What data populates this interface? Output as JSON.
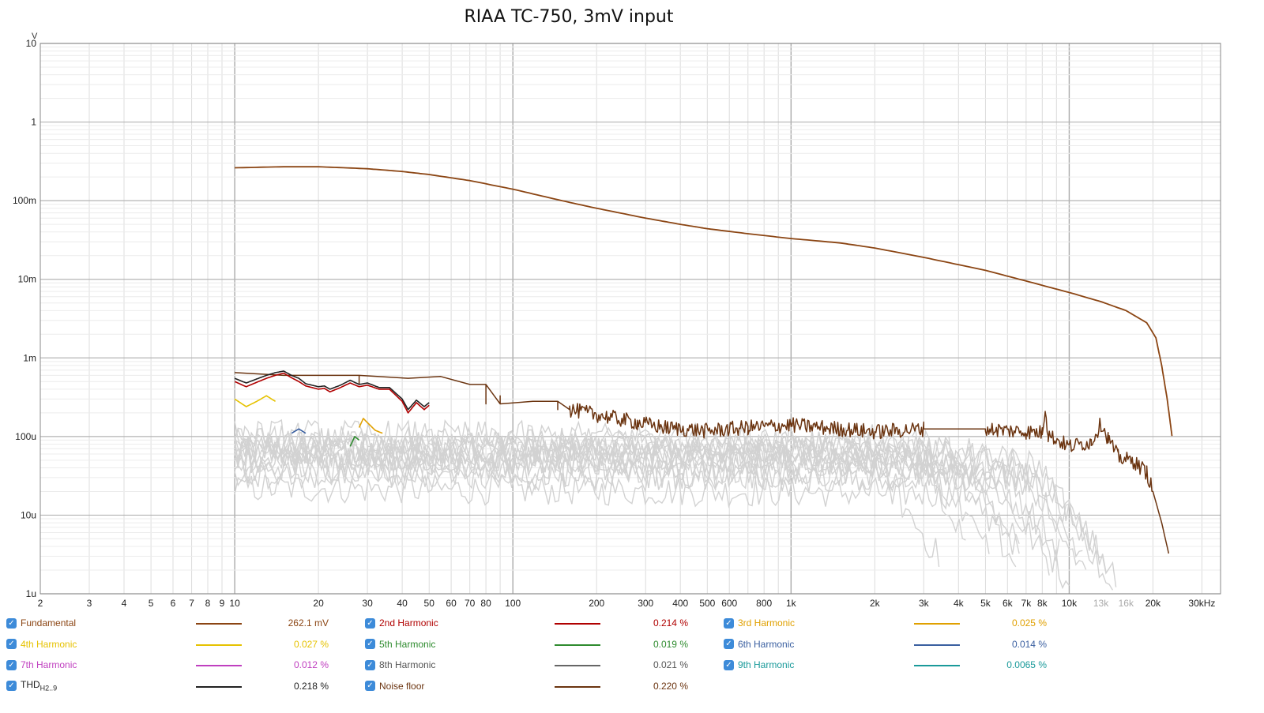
{
  "chart_data": {
    "type": "line",
    "title": "RIAA TC-750, 3mV input",
    "xlabel": "",
    "ylabel": "V",
    "xscale": "log",
    "yscale": "log",
    "xlim": [
      2,
      35000
    ],
    "ylim": [
      1e-06,
      10
    ],
    "grid": true,
    "x_ticks": [
      {
        "v": 2,
        "l": "2",
        "major": false
      },
      {
        "v": 3,
        "l": "3",
        "major": false
      },
      {
        "v": 4,
        "l": "4",
        "major": false
      },
      {
        "v": 5,
        "l": "5",
        "major": false
      },
      {
        "v": 6,
        "l": "6",
        "major": false
      },
      {
        "v": 7,
        "l": "7",
        "major": false
      },
      {
        "v": 8,
        "l": "8",
        "major": false
      },
      {
        "v": 9,
        "l": "9",
        "major": false
      },
      {
        "v": 10,
        "l": "10",
        "major": true
      },
      {
        "v": 20,
        "l": "20",
        "major": false
      },
      {
        "v": 30,
        "l": "30",
        "major": false
      },
      {
        "v": 40,
        "l": "40",
        "major": false
      },
      {
        "v": 50,
        "l": "50",
        "major": false
      },
      {
        "v": 60,
        "l": "60",
        "major": false
      },
      {
        "v": 70,
        "l": "70",
        "major": false
      },
      {
        "v": 80,
        "l": "80",
        "major": false
      },
      {
        "v": 100,
        "l": "100",
        "major": true
      },
      {
        "v": 200,
        "l": "200",
        "major": false
      },
      {
        "v": 300,
        "l": "300",
        "major": false
      },
      {
        "v": 400,
        "l": "400",
        "major": false
      },
      {
        "v": 500,
        "l": "500",
        "major": false
      },
      {
        "v": 600,
        "l": "600",
        "major": false
      },
      {
        "v": 800,
        "l": "800",
        "major": false
      },
      {
        "v": 1000,
        "l": "1k",
        "major": true
      },
      {
        "v": 2000,
        "l": "2k",
        "major": false
      },
      {
        "v": 3000,
        "l": "3k",
        "major": false
      },
      {
        "v": 4000,
        "l": "4k",
        "major": false
      },
      {
        "v": 5000,
        "l": "5k",
        "major": false
      },
      {
        "v": 6000,
        "l": "6k",
        "major": false
      },
      {
        "v": 7000,
        "l": "7k",
        "major": false
      },
      {
        "v": 8000,
        "l": "8k",
        "major": false
      },
      {
        "v": 10000,
        "l": "10k",
        "major": true
      },
      {
        "v": 13000,
        "l": "13k",
        "major": false,
        "faded": true
      },
      {
        "v": 16000,
        "l": "16k",
        "major": false,
        "faded": true
      },
      {
        "v": 20000,
        "l": "20k",
        "major": false
      },
      {
        "v": 30000,
        "l": "30kHz",
        "major": false
      }
    ],
    "y_ticks": [
      {
        "v": 10,
        "l": "10"
      },
      {
        "v": 1,
        "l": "1"
      },
      {
        "v": 0.1,
        "l": "100m"
      },
      {
        "v": 0.01,
        "l": "10m"
      },
      {
        "v": 0.001,
        "l": "1m"
      },
      {
        "v": 0.0001,
        "l": "100u"
      },
      {
        "v": 1e-05,
        "l": "10u"
      },
      {
        "v": 1e-06,
        "l": "1u"
      }
    ],
    "series": [
      {
        "name": "Fundamental",
        "color": "#8b4513",
        "width": 1.8,
        "points": [
          [
            10,
            0.262
          ],
          [
            15,
            0.27
          ],
          [
            20,
            0.27
          ],
          [
            30,
            0.255
          ],
          [
            40,
            0.235
          ],
          [
            50,
            0.215
          ],
          [
            70,
            0.18
          ],
          [
            100,
            0.14
          ],
          [
            150,
            0.1
          ],
          [
            200,
            0.08
          ],
          [
            300,
            0.06
          ],
          [
            400,
            0.05
          ],
          [
            500,
            0.044
          ],
          [
            700,
            0.038
          ],
          [
            1000,
            0.033
          ],
          [
            1500,
            0.029
          ],
          [
            2000,
            0.025
          ],
          [
            3000,
            0.019
          ],
          [
            5000,
            0.013
          ],
          [
            7000,
            0.0095
          ],
          [
            10000,
            0.0068
          ],
          [
            13000,
            0.0052
          ],
          [
            16000,
            0.004
          ],
          [
            19000,
            0.0028
          ],
          [
            20500,
            0.0018
          ],
          [
            21500,
            0.0008
          ],
          [
            22500,
            0.0003
          ],
          [
            23500,
            9.2e-05
          ]
        ]
      },
      {
        "name": "Noise floor",
        "color": "#6b3410",
        "width": 1.5,
        "noisy": true,
        "points": [
          [
            10,
            0.00065
          ],
          [
            15,
            0.00065
          ],
          [
            15,
            0.0006
          ],
          [
            28,
            0.0006
          ],
          [
            28,
            0.00046
          ],
          [
            42,
            0.00046
          ],
          [
            42,
            0.00055
          ],
          [
            55,
            0.00055
          ],
          [
            55,
            0.00058
          ],
          [
            70,
            0.00058
          ],
          [
            70,
            0.00046
          ],
          [
            80,
            0.00046
          ],
          [
            80,
            0.00026
          ],
          [
            90,
            0.00026
          ],
          [
            90,
            0.00033
          ],
          [
            118,
            0.00033
          ],
          [
            118,
            0.00028
          ],
          [
            128,
            0.00028
          ],
          [
            128,
            0.00028
          ],
          [
            145,
            0.00028
          ],
          [
            145,
            0.00022
          ],
          [
            160,
            0.00022
          ],
          [
            200,
            0.00019
          ],
          [
            280,
            0.00015
          ],
          [
            350,
            0.00013
          ],
          [
            500,
            0.000118
          ],
          [
            700,
            0.00013
          ],
          [
            1000,
            0.00014
          ],
          [
            1500,
            0.000125
          ],
          [
            2000,
            0.000115
          ],
          [
            3000,
            0.000125
          ],
          [
            5000,
            0.000125
          ],
          [
            7000,
            0.000115
          ],
          [
            8000,
            0.000112
          ],
          [
            8200,
            0.00024
          ],
          [
            8400,
            0.000105
          ],
          [
            10000,
            7.5e-05
          ],
          [
            12000,
            8.5e-05
          ],
          [
            13000,
            0.000145
          ],
          [
            13800,
            9.5e-05
          ],
          [
            15000,
            5.5e-05
          ],
          [
            17000,
            4.8e-05
          ],
          [
            19000,
            3.5e-05
          ],
          [
            20000,
            2e-05
          ],
          [
            21500,
            8e-06
          ],
          [
            23000,
            2.8e-06
          ]
        ]
      },
      {
        "name": "THD H2..9",
        "color": "#222222",
        "width": 1.6,
        "points": [
          [
            10,
            0.00055
          ],
          [
            11,
            0.00048
          ],
          [
            12,
            0.00054
          ],
          [
            13,
            0.0006
          ],
          [
            14,
            0.00065
          ],
          [
            15,
            0.00068
          ],
          [
            16,
            0.0006
          ],
          [
            17,
            0.00055
          ],
          [
            18,
            0.00047
          ],
          [
            20,
            0.00043
          ],
          [
            21,
            0.00044
          ],
          [
            22,
            0.0004
          ],
          [
            24,
            0.00045
          ],
          [
            26,
            0.00052
          ],
          [
            28,
            0.00046
          ],
          [
            30,
            0.00048
          ],
          [
            33,
            0.00042
          ],
          [
            36,
            0.00042
          ],
          [
            40,
            0.0003
          ],
          [
            42,
            0.00022
          ],
          [
            45,
            0.00029
          ],
          [
            48,
            0.00024
          ],
          [
            50,
            0.00027
          ]
        ]
      },
      {
        "name": "2nd Harmonic",
        "color": "#b00000",
        "width": 1.6,
        "points": [
          [
            10,
            0.0005
          ],
          [
            11,
            0.00043
          ],
          [
            12,
            0.00049
          ],
          [
            13,
            0.00055
          ],
          [
            14,
            0.0006
          ],
          [
            15,
            0.00064
          ],
          [
            16,
            0.00056
          ],
          [
            17,
            0.0005
          ],
          [
            18,
            0.00044
          ],
          [
            20,
            0.0004
          ],
          [
            21,
            0.00041
          ],
          [
            22,
            0.00037
          ],
          [
            24,
            0.00042
          ],
          [
            26,
            0.00048
          ],
          [
            28,
            0.00043
          ],
          [
            30,
            0.00045
          ],
          [
            33,
            0.0004
          ],
          [
            36,
            0.0004
          ],
          [
            40,
            0.00028
          ],
          [
            42,
            0.0002
          ],
          [
            45,
            0.00027
          ],
          [
            48,
            0.00022
          ],
          [
            50,
            0.00025
          ]
        ]
      },
      {
        "name": "4th Harmonic",
        "color": "#e6c200",
        "width": 1.6,
        "points": [
          [
            10,
            0.0003
          ],
          [
            11,
            0.00024
          ],
          [
            12,
            0.00028
          ],
          [
            13,
            0.00033
          ],
          [
            14,
            0.00028
          ]
        ]
      },
      {
        "name": "3rd Harmonic",
        "color": "#e0a000",
        "width": 1.6,
        "points": [
          [
            28,
            0.00013
          ],
          [
            29,
            0.00017
          ],
          [
            30,
            0.00015
          ],
          [
            32,
            0.00012
          ],
          [
            34,
            0.00011
          ]
        ]
      },
      {
        "name": "5th Harmonic",
        "color": "#2e8b2e",
        "width": 1.6,
        "points": [
          [
            26,
            7.5e-05
          ],
          [
            27,
            0.0001
          ],
          [
            28,
            9e-05
          ]
        ]
      },
      {
        "name": "6th Harmonic",
        "color": "#3a5fa0",
        "width": 1.6,
        "points": [
          [
            16,
            0.00011
          ],
          [
            17,
            0.000125
          ],
          [
            18,
            0.00011
          ]
        ]
      }
    ],
    "legend": [
      {
        "label": "Fundamental",
        "value": "262.1 mV",
        "color": "#8b4513"
      },
      {
        "label": "2nd Harmonic",
        "value": "0.214 %",
        "color": "#b00000"
      },
      {
        "label": "3rd Harmonic",
        "value": "0.025 %",
        "color": "#e0a000"
      },
      {
        "label": "4th Harmonic",
        "value": "0.027 %",
        "color": "#e6c200"
      },
      {
        "label": "5th Harmonic",
        "value": "0.019 %",
        "color": "#2e8b2e"
      },
      {
        "label": "6th Harmonic",
        "value": "0.014 %",
        "color": "#3a5fa0"
      },
      {
        "label": "7th Harmonic",
        "value": "0.012 %",
        "color": "#c040c0"
      },
      {
        "label": "8th Harmonic",
        "value": "0.021 %",
        "color": "#666666"
      },
      {
        "label": "9th Harmonic",
        "value": "0.0065 %",
        "color": "#1a9a9a"
      },
      {
        "label": "THD",
        "label_sub": "H2..9",
        "value": "0.218 %",
        "color": "#222222"
      },
      {
        "label": "Noise floor",
        "value": "0.220 %",
        "color": "#6b3410"
      }
    ]
  },
  "checkbox_glyph": "✓"
}
